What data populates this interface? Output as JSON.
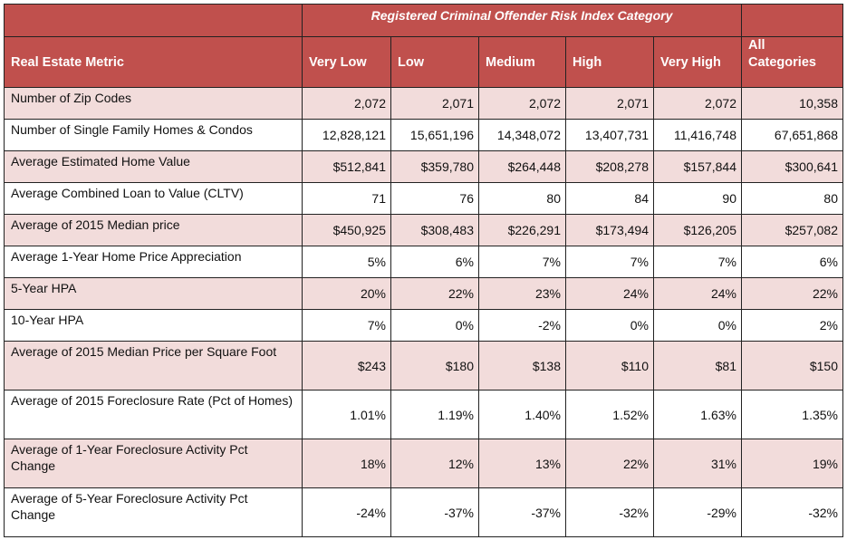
{
  "table": {
    "title": "Registered Criminal Offender Risk Index Category",
    "columns": [
      "Real Estate Metric",
      "Very Low",
      "Low",
      "Medium",
      "High",
      "Very High",
      "All Categories"
    ],
    "rows": [
      {
        "metric": "Number of Zip Codes",
        "values": [
          "2,072",
          "2,071",
          "2,072",
          "2,071",
          "2,072",
          "10,358"
        ]
      },
      {
        "metric": "Number of Single Family Homes & Condos",
        "values": [
          "12,828,121",
          "15,651,196",
          "14,348,072",
          "13,407,731",
          "11,416,748",
          "67,651,868"
        ]
      },
      {
        "metric": "Average Estimated Home Value",
        "values": [
          "$512,841",
          "$359,780",
          "$264,448",
          "$208,278",
          "$157,844",
          "$300,641"
        ]
      },
      {
        "metric": "Average Combined Loan to Value (CLTV)",
        "values": [
          "71",
          "76",
          "80",
          "84",
          "90",
          "80"
        ]
      },
      {
        "metric": "Average of 2015 Median price",
        "values": [
          "$450,925",
          "$308,483",
          "$226,291",
          "$173,494",
          "$126,205",
          "$257,082"
        ]
      },
      {
        "metric": "Average 1-Year Home Price Appreciation",
        "values": [
          "5%",
          "6%",
          "7%",
          "7%",
          "7%",
          "6%"
        ]
      },
      {
        "metric": "5-Year HPA",
        "values": [
          "20%",
          "22%",
          "23%",
          "24%",
          "24%",
          "22%"
        ]
      },
      {
        "metric": "10-Year HPA",
        "values": [
          "7%",
          "0%",
          "-2%",
          "0%",
          "0%",
          "2%"
        ]
      },
      {
        "metric": "Average of 2015 Median Price per Square Foot",
        "values": [
          "$243",
          "$180",
          "$138",
          "$110",
          "$81",
          "$150"
        ]
      },
      {
        "metric": "Average of 2015 Foreclosure Rate (Pct of Homes)",
        "values": [
          "1.01%",
          "1.19%",
          "1.40%",
          "1.52%",
          "1.63%",
          "1.35%"
        ]
      },
      {
        "metric": "Average of 1-Year Foreclosure Activity Pct Change",
        "values": [
          "18%",
          "12%",
          "13%",
          "22%",
          "31%",
          "19%"
        ]
      },
      {
        "metric": "Average of 5-Year Foreclosure Activity Pct Change",
        "values": [
          "-24%",
          "-37%",
          "-37%",
          "-32%",
          "-29%",
          "-32%"
        ]
      }
    ]
  }
}
